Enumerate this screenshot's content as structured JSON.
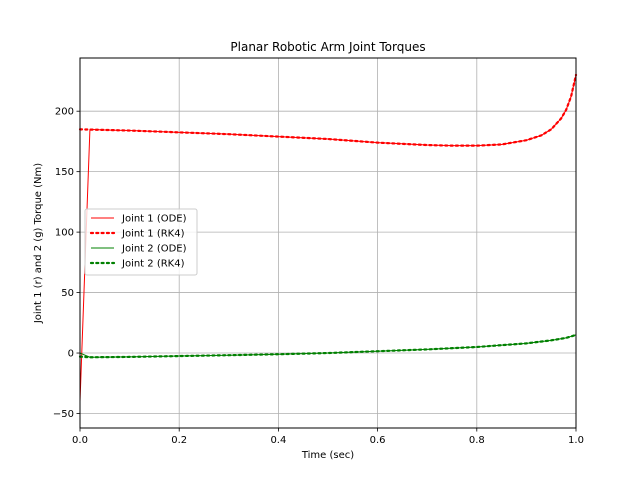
{
  "chart_data": {
    "type": "line",
    "title": "Planar Robotic Arm Joint Torques",
    "xlabel": "Time (sec)",
    "ylabel": "Joint 1 (r) and 2 (g) Torque (Nm)",
    "xlim": [
      0,
      1
    ],
    "ylim": [
      -62,
      244
    ],
    "xticks": [
      0.0,
      0.2,
      0.4,
      0.6,
      0.8,
      1.0
    ],
    "xtick_labels": [
      "0.0",
      "0.2",
      "0.4",
      "0.6",
      "0.8",
      "1.0"
    ],
    "yticks": [
      -50,
      0,
      50,
      100,
      150,
      200
    ],
    "ytick_labels": [
      "−50",
      "0",
      "50",
      "100",
      "150",
      "200"
    ],
    "grid": true,
    "legend_position": "center-left",
    "series": [
      {
        "name": "Joint 1 (ODE)",
        "color": "#ff0000",
        "style": "solid",
        "x": [
          0.0,
          0.02,
          0.05,
          0.1,
          0.2,
          0.3,
          0.4,
          0.5,
          0.6,
          0.7,
          0.75,
          0.8,
          0.85,
          0.9,
          0.93,
          0.95,
          0.97,
          0.98,
          0.99,
          1.0
        ],
        "y": [
          -40,
          185,
          184.5,
          184,
          182.5,
          181,
          179,
          177,
          174,
          172,
          171.5,
          171.5,
          172.5,
          176,
          180,
          185,
          194,
          201,
          212,
          230
        ]
      },
      {
        "name": "Joint 1 (RK4)",
        "color": "#ff0000",
        "style": "dotted",
        "x": [
          0.0,
          0.05,
          0.1,
          0.2,
          0.3,
          0.4,
          0.5,
          0.6,
          0.7,
          0.75,
          0.8,
          0.85,
          0.9,
          0.93,
          0.95,
          0.97,
          0.98,
          0.99,
          1.0
        ],
        "y": [
          185,
          184.5,
          184,
          182.5,
          181,
          179,
          177,
          174,
          172,
          171.5,
          171.5,
          172.5,
          176,
          180,
          185,
          194,
          201,
          212,
          230
        ]
      },
      {
        "name": "Joint 2 (ODE)",
        "color": "#008000",
        "style": "solid",
        "x": [
          0.0,
          0.02,
          0.1,
          0.2,
          0.3,
          0.4,
          0.5,
          0.6,
          0.7,
          0.8,
          0.85,
          0.9,
          0.95,
          0.98,
          1.0
        ],
        "y": [
          0,
          -3.5,
          -3.2,
          -2.5,
          -1.8,
          -1,
          0,
          1.5,
          3,
          5,
          6.5,
          8,
          10.5,
          12.5,
          15
        ]
      },
      {
        "name": "Joint 2 (RK4)",
        "color": "#008000",
        "style": "dotted",
        "x": [
          0.0,
          0.02,
          0.1,
          0.2,
          0.3,
          0.4,
          0.5,
          0.6,
          0.7,
          0.8,
          0.85,
          0.9,
          0.95,
          0.98,
          1.0
        ],
        "y": [
          -3,
          -3.5,
          -3.2,
          -2.5,
          -1.8,
          -1,
          0,
          1.5,
          3,
          5,
          6.5,
          8,
          10.5,
          12.5,
          15
        ]
      }
    ]
  }
}
